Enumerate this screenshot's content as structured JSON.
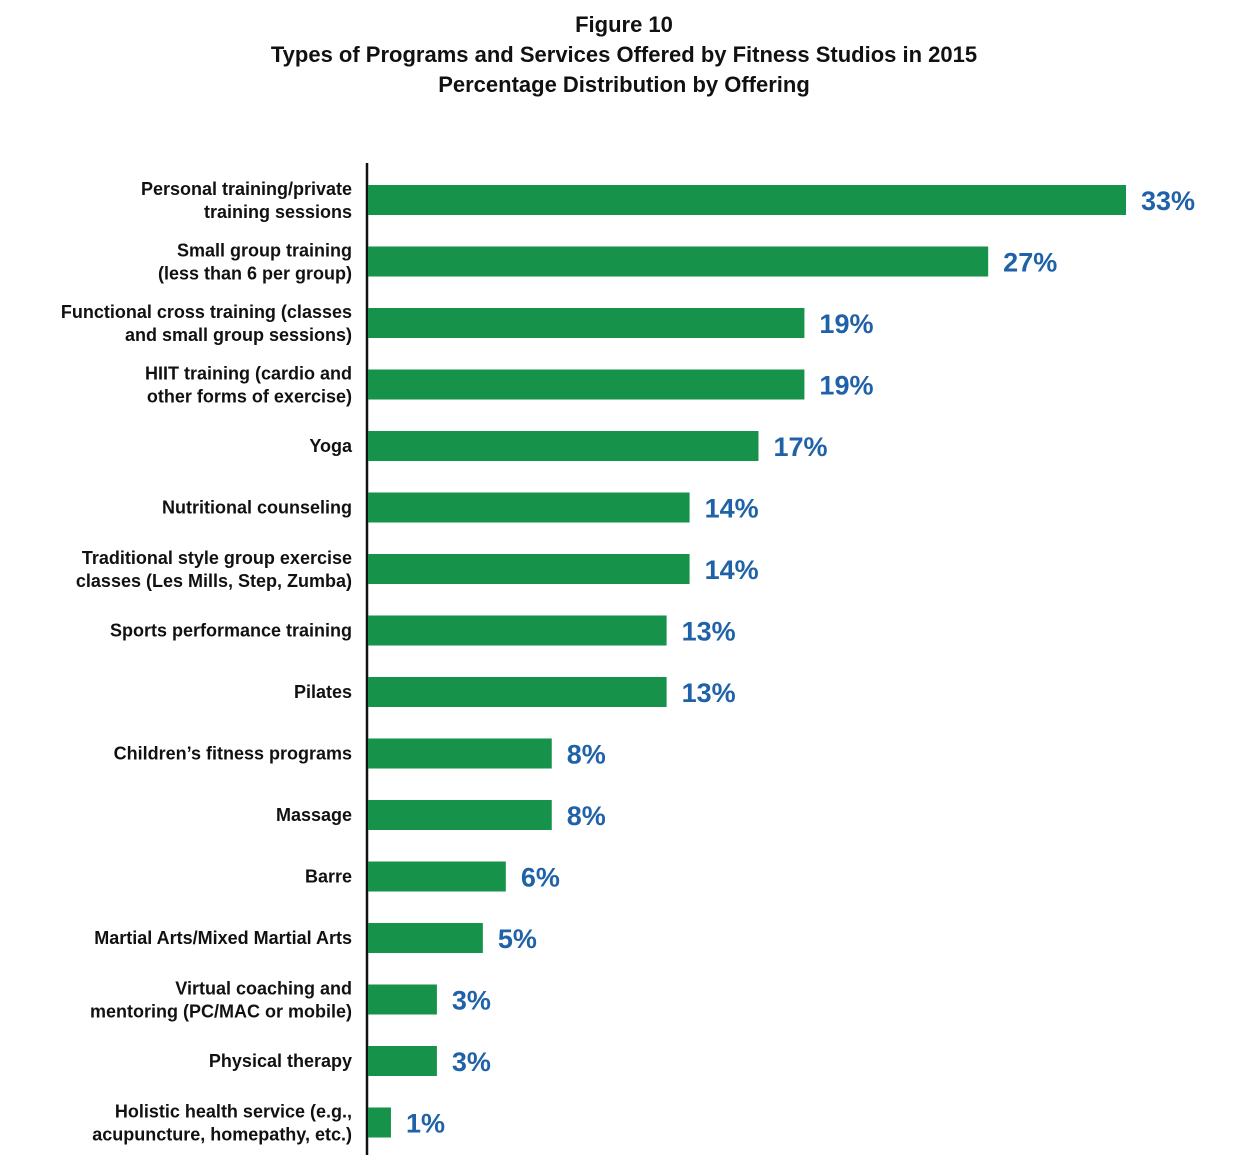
{
  "chart_data": {
    "type": "bar",
    "orientation": "horizontal",
    "title": "Figure 10",
    "subtitle_lines": [
      "Types of Programs and Services Offered by Fitness Studios in 2015",
      "Percentage Distribution by Offering"
    ],
    "categories": [
      [
        "Personal training/private",
        "training sessions"
      ],
      [
        "Small group training",
        "(less than 6 per group)"
      ],
      [
        "Functional cross training (classes",
        "and small group sessions)"
      ],
      [
        "HIIT training (cardio and",
        "other forms of exercise)"
      ],
      [
        "Yoga"
      ],
      [
        "Nutritional counseling"
      ],
      [
        "Traditional style group exercise",
        "classes (Les Mills, Step, Zumba)"
      ],
      [
        "Sports performance training"
      ],
      [
        "Pilates"
      ],
      [
        "Children’s fitness programs"
      ],
      [
        "Massage"
      ],
      [
        "Barre"
      ],
      [
        "Martial Arts/Mixed Martial Arts"
      ],
      [
        "Virtual coaching and",
        "mentoring (PC/MAC or mobile)"
      ],
      [
        "Physical therapy"
      ],
      [
        "Holistic health service (e.g.,",
        "acupuncture, homepathy, etc.)"
      ]
    ],
    "values": [
      33,
      27,
      19,
      19,
      17,
      14,
      14,
      13,
      13,
      8,
      8,
      6,
      5,
      3,
      3,
      1
    ],
    "value_labels": [
      "33%",
      "27%",
      "19%",
      "19%",
      "17%",
      "14%",
      "14%",
      "13%",
      "13%",
      "8%",
      "8%",
      "6%",
      "5%",
      "3%",
      "3%",
      "1%"
    ],
    "unit": "%",
    "xlim": [
      0,
      33
    ],
    "grid": false,
    "legend": "none",
    "colors": {
      "bar": "#16924a",
      "value_label": "#1f62a8",
      "axis": "#111111",
      "text": "#111111"
    }
  }
}
